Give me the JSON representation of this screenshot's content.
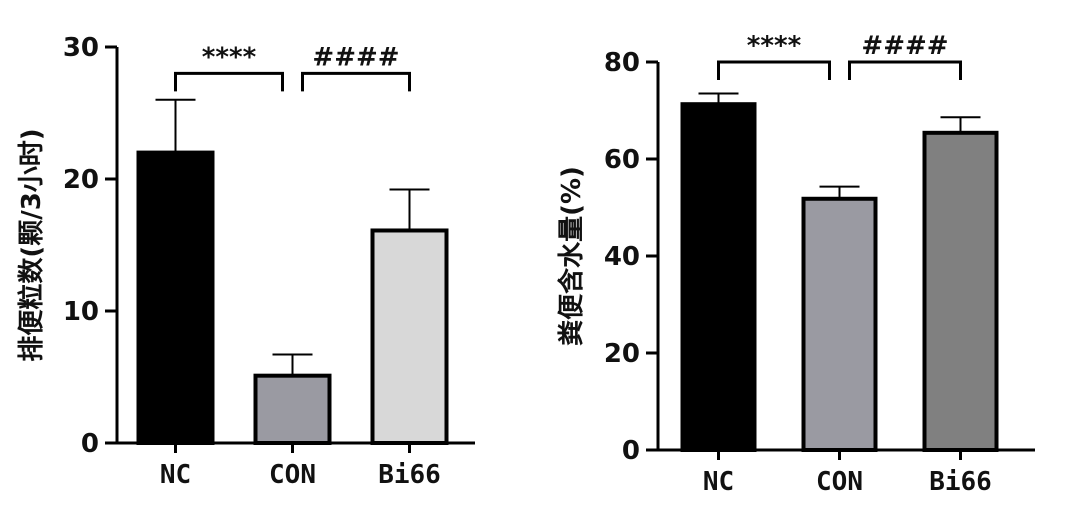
{
  "chart_data": [
    {
      "type": "bar",
      "categories": [
        "NC",
        "CON",
        "Bi66"
      ],
      "values": [
        22.0,
        5.1,
        16.1
      ],
      "errors": [
        4.0,
        1.6,
        3.1
      ],
      "bar_colors": [
        "#000000",
        "#9a9aa2",
        "#d8d8d8"
      ],
      "ylabel": "排便粒数(颗/3小时)",
      "ylim": [
        0,
        30
      ],
      "yticks": [
        0,
        10,
        20,
        30
      ],
      "grid": false,
      "comparisons": [
        {
          "from": 0,
          "to": 1,
          "label": "****",
          "y": 28.0
        },
        {
          "from": 1,
          "to": 2,
          "label": "####",
          "y": 28.0
        }
      ]
    },
    {
      "type": "bar",
      "categories": [
        "NC",
        "CON",
        "Bi66"
      ],
      "values": [
        71.3,
        51.8,
        65.4
      ],
      "errors": [
        2.2,
        2.5,
        3.2
      ],
      "bar_colors": [
        "#000000",
        "#9a9aa2",
        "#808080"
      ],
      "ylabel": "粪便含水量(%)",
      "ylim": [
        0,
        80
      ],
      "yticks": [
        0,
        20,
        40,
        60,
        80
      ],
      "grid": false,
      "comparisons": [
        {
          "from": 0,
          "to": 1,
          "label": "****",
          "y": 80.0
        },
        {
          "from": 1,
          "to": 2,
          "label": "####",
          "y": 80.0
        }
      ]
    }
  ]
}
